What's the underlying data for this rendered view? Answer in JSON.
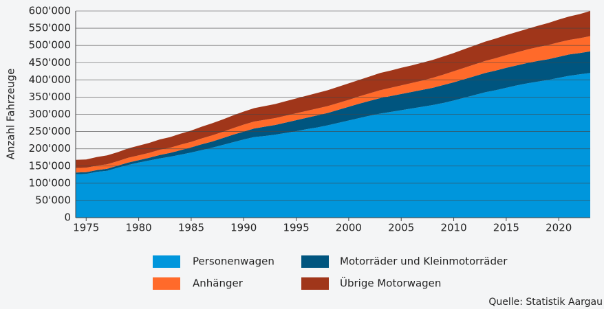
{
  "chart_data": {
    "type": "stacked_area",
    "y_label": "Anzahl Fahrzeuge",
    "source": "Quelle: Statistik Aargau",
    "x": [
      1974,
      1975,
      1976,
      1977,
      1978,
      1979,
      1980,
      1981,
      1982,
      1983,
      1984,
      1985,
      1986,
      1987,
      1988,
      1989,
      1990,
      1991,
      1992,
      1993,
      1994,
      1995,
      1996,
      1997,
      1998,
      1999,
      2000,
      2001,
      2002,
      2003,
      2004,
      2005,
      2006,
      2007,
      2008,
      2009,
      2010,
      2011,
      2012,
      2013,
      2014,
      2015,
      2016,
      2017,
      2018,
      2019,
      2020,
      2021,
      2022,
      2023
    ],
    "xlim": [
      1974,
      2023
    ],
    "xticks": [
      1975,
      1980,
      1985,
      1990,
      1995,
      2000,
      2005,
      2010,
      2015,
      2020
    ],
    "ylim": [
      0,
      600000
    ],
    "yticks": [
      0,
      {
        "value": 50000,
        "label": "50'000"
      },
      {
        "value": 100000,
        "label": "100'000"
      },
      {
        "value": 150000,
        "label": "150'000"
      },
      {
        "value": 200000,
        "label": "200'000"
      },
      {
        "value": 250000,
        "label": "250'000"
      },
      {
        "value": 300000,
        "label": "300'000"
      },
      {
        "value": 350000,
        "label": "350'000"
      },
      {
        "value": 400000,
        "label": "400'000"
      },
      {
        "value": 450000,
        "label": "450'000"
      },
      {
        "value": 500000,
        "label": "500'000"
      },
      {
        "value": 550000,
        "label": "550'000"
      },
      {
        "value": 600000,
        "label": "600'000"
      }
    ],
    "grid": true,
    "series": [
      {
        "name": "Personenwagen",
        "color": "#0096dc",
        "values": [
          126000,
          127000,
          133000,
          136000,
          145000,
          153000,
          160000,
          166000,
          172000,
          177000,
          183000,
          189000,
          196000,
          203000,
          211000,
          219000,
          227000,
          234000,
          237000,
          241000,
          246000,
          251000,
          257000,
          262000,
          268000,
          275000,
          282000,
          289000,
          296000,
          302000,
          307000,
          312000,
          317000,
          322000,
          327000,
          333000,
          340000,
          348000,
          356000,
          364000,
          370000,
          377000,
          384000,
          390000,
          395000,
          400000,
          406000,
          412000,
          416000,
          420000
        ]
      },
      {
        "name": "Motorräder und Kleinmotorräder",
        "color": "#00557f",
        "values": [
          5000,
          5000,
          5000,
          6000,
          6000,
          7000,
          7000,
          8000,
          10000,
          11000,
          13000,
          15000,
          17000,
          18000,
          20000,
          22000,
          23000,
          25000,
          27000,
          28000,
          30000,
          32000,
          33000,
          35000,
          36000,
          38000,
          40000,
          42000,
          43000,
          45000,
          46000,
          47000,
          48000,
          49000,
          50000,
          52000,
          53000,
          54000,
          55000,
          56000,
          57000,
          58000,
          58000,
          59000,
          60000,
          60000,
          61000,
          62000,
          62000,
          63000
        ]
      },
      {
        "name": "Anhänger",
        "color": "#ff6a2a",
        "values": [
          13000,
          13000,
          13000,
          13000,
          13000,
          14000,
          14000,
          14000,
          15000,
          15000,
          16000,
          16000,
          17000,
          18000,
          18000,
          19000,
          20000,
          20000,
          20000,
          20000,
          20000,
          20000,
          20000,
          20000,
          20000,
          20000,
          20000,
          21000,
          22000,
          23000,
          24000,
          25000,
          26000,
          27000,
          29000,
          30000,
          32000,
          33000,
          34000,
          35000,
          36000,
          37000,
          38000,
          39000,
          40000,
          41000,
          42000,
          42000,
          43000,
          44000
        ]
      },
      {
        "name": "Übrige Motorwagen",
        "color": "#a0361a",
        "values": [
          24000,
          24000,
          25000,
          26000,
          26000,
          27000,
          28000,
          29000,
          30000,
          31000,
          32000,
          33000,
          34000,
          35000,
          36000,
          37000,
          38000,
          39000,
          40000,
          41000,
          42000,
          43000,
          44000,
          45000,
          46000,
          47000,
          48000,
          48000,
          49000,
          50000,
          50000,
          51000,
          51000,
          52000,
          52000,
          53000,
          53000,
          54000,
          55000,
          56000,
          57000,
          58000,
          59000,
          60000,
          62000,
          64000,
          66000,
          68000,
          70000,
          73000
        ]
      }
    ]
  }
}
